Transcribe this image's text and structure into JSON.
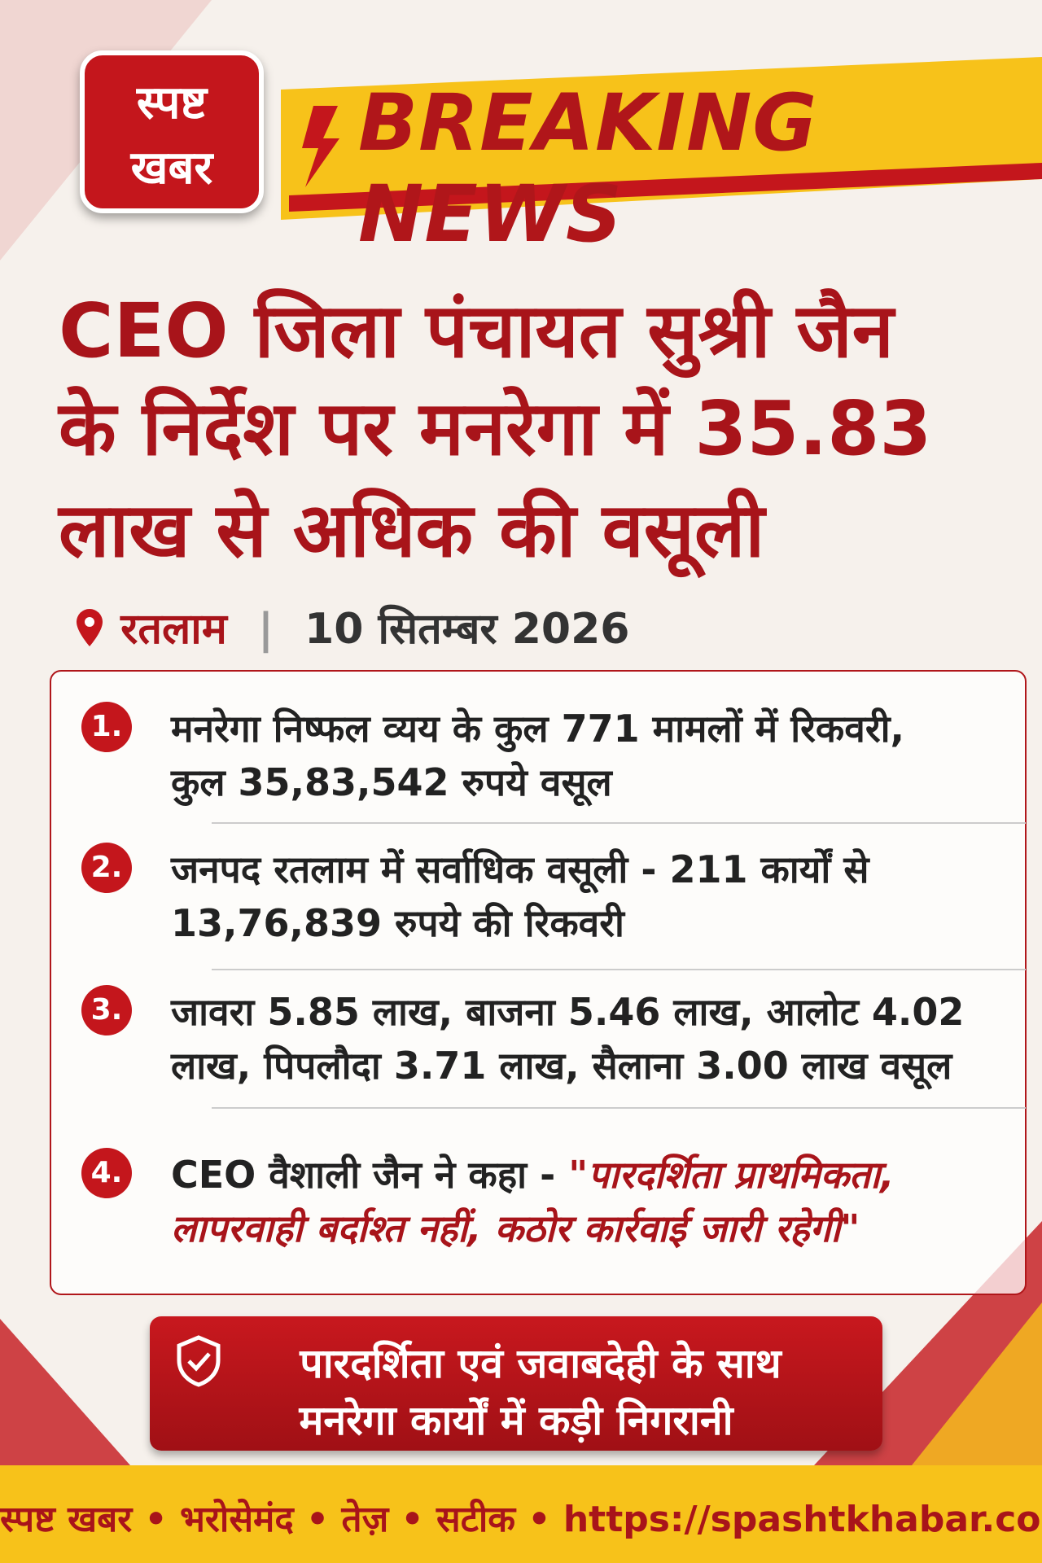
{
  "header": {
    "logo": [
      "स्पष्ट",
      "खबर"
    ],
    "breaking": "BREAKING NEWS"
  },
  "headline": [
    "CEO जिला पंचायत सुश्री जैन",
    "के निर्देश पर मनरेगा में 35.83",
    "लाख से अधिक की वसूली"
  ],
  "meta": {
    "location": "रतलाम",
    "date": "10 सितम्बर 2026"
  },
  "points": [
    {
      "number": "1.",
      "lines": [
        "मनरेगा निष्फल व्यय के कुल 771 मामलों में रिकवरी,",
        "कुल 35,83,542 रुपये वसूल"
      ]
    },
    {
      "number": "2.",
      "lines": [
        "जनपद रतलाम में सर्वाधिक वसूली - 211 कार्यों से",
        "13,76,839 रुपये की रिकवरी"
      ]
    },
    {
      "number": "3.",
      "lines": [
        "जावरा 5.85 लाख, बाजना 5.46 लाख, आलोट 4.02",
        "लाख, पिपलौदा 3.71 लाख, सैलाना 3.00 लाख वसूल"
      ]
    },
    {
      "number": "4.",
      "lines": [
        "CEO वैशाली जैन ने कहा -"
      ],
      "quote": [
        "\"पारदर्शिता प्राथमिकता,",
        "लापरवाही बर्दाश्त नहीं, कठोर कार्रवाई जारी रहेगी\""
      ]
    }
  ],
  "banner": [
    "पारदर्शिता एवं जवाबदेही के साथ",
    "मनरेगा कार्यों में कड़ी निगरानी"
  ],
  "footer": "स्पष्ट खबर • भरोसेमंद • तेज़ • सटीक • https://spashtkhabar.com"
}
